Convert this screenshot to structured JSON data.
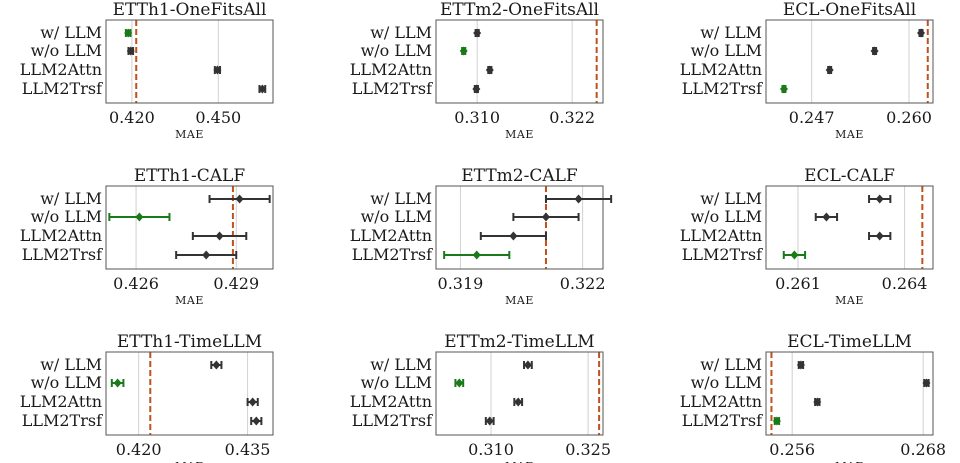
{
  "figure": {
    "type": "forest-plot-grid",
    "rows": 3,
    "cols": 3
  },
  "colors": {
    "base": "#333333",
    "best": "#1a7a1a",
    "reference": "#c0501c",
    "grid": "#d0d0d0",
    "frame": "#555555"
  },
  "chart_data": [
    {
      "type": "scatter",
      "title": "ETTh1-OneFitsAll",
      "xlabel": "MAE",
      "categories": [
        "w/ LLM",
        "w/o LLM",
        "LLM2Attn",
        "LLM2Trsf"
      ],
      "xlim": [
        0.411,
        0.469
      ],
      "xticks": [
        0.42,
        0.45
      ],
      "xtick_labels": [
        "0.420",
        "0.450"
      ],
      "reference_line": 0.4215,
      "values": [
        0.4187,
        0.4196,
        0.4497,
        0.4653
      ],
      "err": [
        0.0008,
        0.0008,
        0.0009,
        0.001
      ],
      "best_index": 0
    },
    {
      "type": "scatter",
      "title": "ETTm2-OneFitsAll",
      "xlabel": "MAE",
      "categories": [
        "w/ LLM",
        "w/o LLM",
        "LLM2Attn",
        "LLM2Trsf"
      ],
      "xlim": [
        0.3048,
        0.3259
      ],
      "xticks": [
        0.31,
        0.322
      ],
      "xtick_labels": [
        "0.310",
        "0.322"
      ],
      "reference_line": 0.3251,
      "values": [
        0.31,
        0.3083,
        0.3116,
        0.3099
      ],
      "err": [
        0.0002,
        0.0002,
        0.0002,
        0.0002
      ],
      "best_index": 1
    },
    {
      "type": "scatter",
      "title": "ECL-OneFitsAll",
      "xlabel": "MAE",
      "categories": [
        "w/ LLM",
        "w/o LLM",
        "LLM2Attn",
        "LLM2Trsf"
      ],
      "xlim": [
        0.2409,
        0.2632
      ],
      "xticks": [
        0.247,
        0.26
      ],
      "xtick_labels": [
        "0.247",
        "0.260"
      ],
      "reference_line": 0.2625,
      "values": [
        0.2616,
        0.2554,
        0.2494,
        0.2433
      ],
      "err": [
        0.0002,
        0.0002,
        0.0002,
        0.0002
      ],
      "best_index": 3
    },
    {
      "type": "scatter",
      "title": "ETTh1-CALF",
      "xlabel": "MAE",
      "categories": [
        "w/ LLM",
        "w/o LLM",
        "LLM2Attn",
        "LLM2Trsf"
      ],
      "xlim": [
        0.4251,
        0.4301
      ],
      "xticks": [
        0.426,
        0.429
      ],
      "xtick_labels": [
        "0.426",
        "0.429"
      ],
      "reference_line": 0.4289,
      "values": [
        0.4291,
        0.4261,
        0.4285,
        0.4281
      ],
      "err": [
        0.0009,
        0.0009,
        0.0008,
        0.0009
      ],
      "best_index": 1
    },
    {
      "type": "scatter",
      "title": "ETTm2-CALF",
      "xlabel": "MAE",
      "categories": [
        "w/ LLM",
        "w/o LLM",
        "LLM2Attn",
        "LLM2Trsf"
      ],
      "xlim": [
        0.3184,
        0.3225
      ],
      "xticks": [
        0.319,
        0.322
      ],
      "xtick_labels": [
        "0.319",
        "0.322"
      ],
      "reference_line": 0.3211,
      "values": [
        0.3219,
        0.3211,
        0.3203,
        0.3194
      ],
      "err": [
        0.0008,
        0.0008,
        0.0008,
        0.0008
      ],
      "best_index": 3
    },
    {
      "type": "scatter",
      "title": "ECL-CALF",
      "xlabel": "MAE",
      "categories": [
        "w/ LLM",
        "w/o LLM",
        "LLM2Attn",
        "LLM2Trsf"
      ],
      "xlim": [
        0.2601,
        0.2648
      ],
      "xticks": [
        0.261,
        0.264
      ],
      "xtick_labels": [
        "0.261",
        "0.264"
      ],
      "reference_line": 0.2645,
      "values": [
        0.2633,
        0.2618,
        0.2633,
        0.2609
      ],
      "err": [
        0.0003,
        0.0003,
        0.0003,
        0.0003
      ],
      "best_index": 3
    },
    {
      "type": "scatter",
      "title": "ETTh1-TimeLLM",
      "xlabel": "MAE",
      "categories": [
        "w/ LLM",
        "w/o LLM",
        "LLM2Attn",
        "LLM2Trsf"
      ],
      "xlim": [
        0.4155,
        0.4385
      ],
      "xticks": [
        0.42,
        0.435
      ],
      "xtick_labels": [
        "0.420",
        "0.435"
      ],
      "reference_line": 0.4216,
      "values": [
        0.4307,
        0.4171,
        0.4357,
        0.4362
      ],
      "err": [
        0.0007,
        0.0008,
        0.0007,
        0.0007
      ],
      "best_index": 1
    },
    {
      "type": "scatter",
      "title": "ETTm2-TimeLLM",
      "xlabel": "MAE",
      "categories": [
        "w/ LLM",
        "w/o LLM",
        "LLM2Attn",
        "LLM2Trsf"
      ],
      "xlim": [
        0.3015,
        0.3273
      ],
      "xticks": [
        0.31,
        0.325
      ],
      "xtick_labels": [
        "0.310",
        "0.325"
      ],
      "reference_line": 0.3267,
      "values": [
        0.3157,
        0.3051,
        0.3142,
        0.3098
      ],
      "err": [
        0.0006,
        0.0006,
        0.0006,
        0.0006
      ],
      "best_index": 1
    },
    {
      "type": "scatter",
      "title": "ECL-TimeLLM",
      "xlabel": "MAE",
      "categories": [
        "w/ LLM",
        "w/o LLM",
        "LLM2Attn",
        "LLM2Trsf"
      ],
      "xlim": [
        0.2536,
        0.2689
      ],
      "xticks": [
        0.256,
        0.268
      ],
      "xtick_labels": [
        "0.256",
        "0.268"
      ],
      "reference_line": 0.2541,
      "values": [
        0.2568,
        0.2683,
        0.2583,
        0.2546
      ],
      "err": [
        0.0002,
        0.0002,
        0.0002,
        0.0002
      ],
      "best_index": 3
    }
  ]
}
